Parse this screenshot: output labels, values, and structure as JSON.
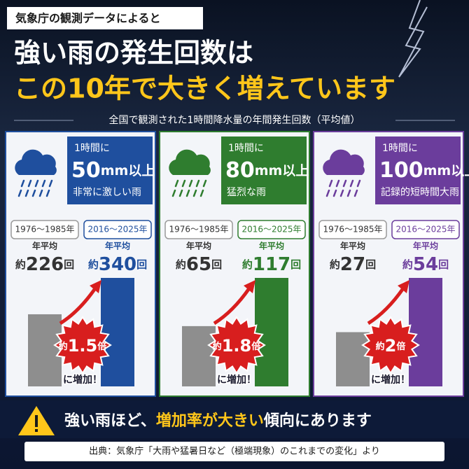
{
  "source_badge": "気象庁の観測データによると",
  "headline": {
    "line1": "強い雨の発生回数は",
    "line2": "この10年で大きく増えています"
  },
  "subtitle": "全国で観測された1時間降水量の年間発生回数（平均値）",
  "panels": [
    {
      "threshold_prefix": "1時間に",
      "threshold_value": "50",
      "threshold_unit": "mm以上",
      "description": "非常に激しい雨",
      "color": "#1f4f9e",
      "periods": [
        "1976〜1985年",
        "2016〜2025年"
      ],
      "avg_label": "年平均",
      "value_prefix": "約",
      "values": [
        226,
        340
      ],
      "value_unit": "回",
      "ratio_prefix": "約",
      "ratio": 1.5,
      "ratio_unit": "倍",
      "increase_label": "に増加！"
    },
    {
      "threshold_prefix": "1時間に",
      "threshold_value": "80",
      "threshold_unit": "mm以上",
      "description": "猛烈な雨",
      "color": "#2f7d2f",
      "periods": [
        "1976〜1985年",
        "2016〜2025年"
      ],
      "avg_label": "年平均",
      "value_prefix": "約",
      "values": [
        65,
        117
      ],
      "value_unit": "回",
      "ratio_prefix": "約",
      "ratio": 1.8,
      "ratio_unit": "倍",
      "increase_label": "に増加！"
    },
    {
      "threshold_prefix": "1時間に",
      "threshold_value": "100",
      "threshold_unit": "mm以上",
      "description": "記録的短時間大雨",
      "color": "#6b3d9c",
      "periods": [
        "1976〜1985年",
        "2016〜2025年"
      ],
      "avg_label": "年平均",
      "value_prefix": "約",
      "values": [
        27,
        54
      ],
      "value_unit": "回",
      "ratio_prefix": "約",
      "ratio": 2,
      "ratio_unit": "倍",
      "increase_label": "に増加！"
    }
  ],
  "footer": {
    "message_parts": [
      "強い雨ほど、",
      "増加率が大きい",
      "傾向にあります"
    ],
    "source": "出典：気象庁「大雨や猛暑日など（極端現象）のこれまでの変化」より"
  }
}
